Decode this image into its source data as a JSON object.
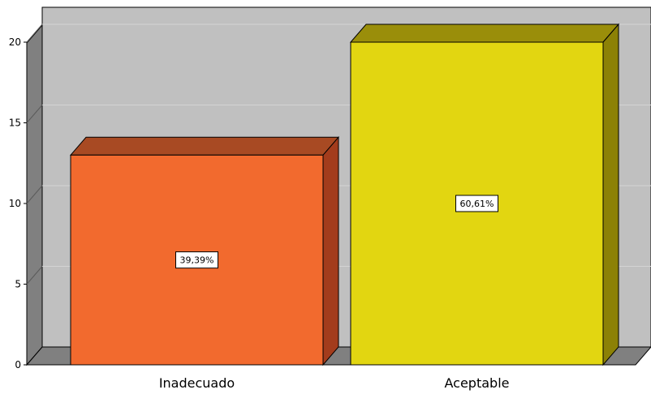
{
  "chart_data": {
    "type": "bar",
    "categories": [
      "Inadecuado",
      "Aceptable"
    ],
    "values": [
      13,
      20
    ],
    "data_labels": [
      "39,39%",
      "60,61%"
    ],
    "title": "",
    "xlabel": "",
    "ylabel": "",
    "ylim": [
      0,
      21
    ],
    "yticks": [
      0,
      5,
      10,
      15,
      20
    ],
    "grid": true,
    "style": "3d",
    "colors": {
      "bar_front": [
        "#f26a2e",
        "#e2d611"
      ],
      "bar_side": [
        "#a33c1c",
        "#8c8106"
      ],
      "bar_top": [
        "#a84a23",
        "#9a8e0a"
      ],
      "back_wall": "#c0c0c0",
      "side_wall": "#808080",
      "floor": "#808080",
      "gridline": "#d4d4d4"
    }
  }
}
